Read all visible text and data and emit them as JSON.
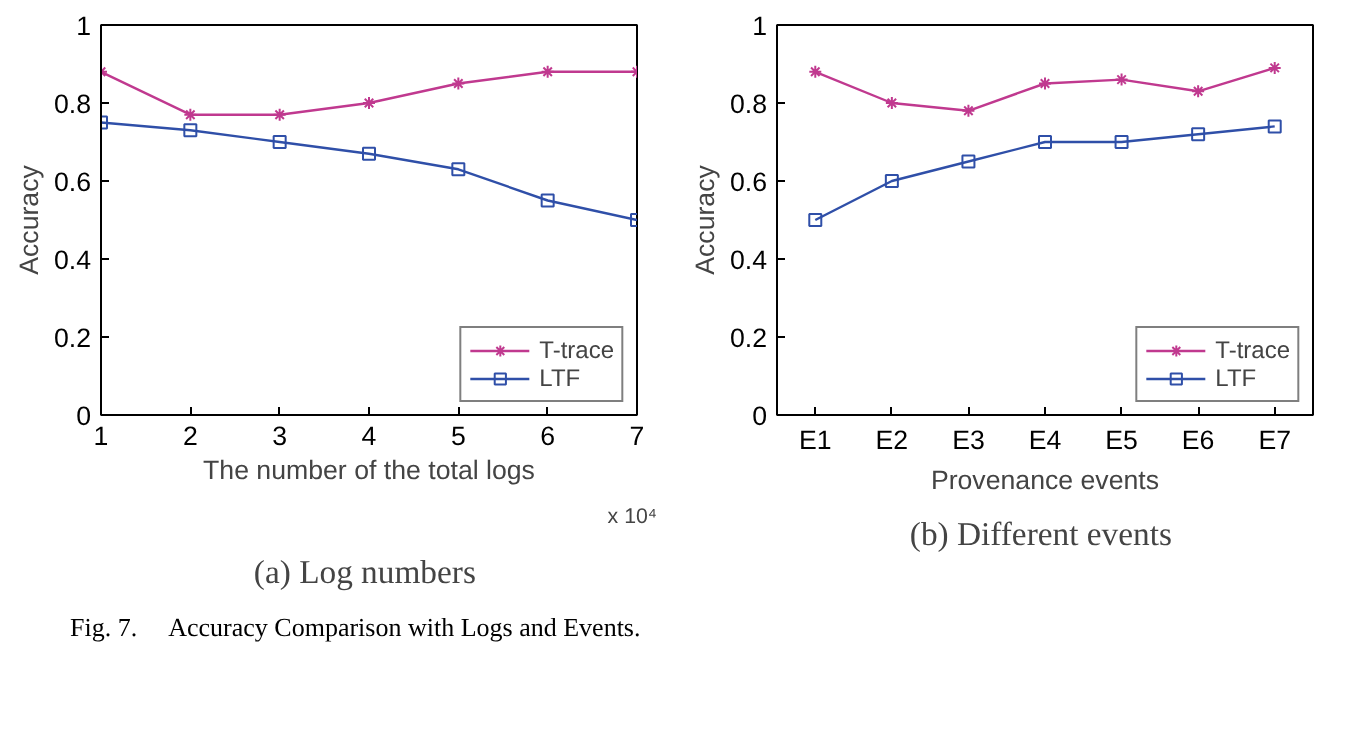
{
  "chart_data": [
    {
      "type": "line",
      "title": "(a)  Log numbers",
      "xlabel": "The number of the total logs",
      "ylabel": "Accuracy",
      "x": [
        1,
        2,
        3,
        4,
        5,
        6,
        7
      ],
      "xlim": [
        1,
        7
      ],
      "xticks": [
        1,
        2,
        3,
        4,
        5,
        6,
        7
      ],
      "ylim": [
        0,
        1
      ],
      "yticks": [
        0,
        0.2,
        0.4,
        0.6,
        0.8,
        1
      ],
      "series": [
        {
          "name": "T-trace",
          "color": "#c0398f",
          "marker": "cross",
          "values": [
            0.88,
            0.77,
            0.77,
            0.8,
            0.85,
            0.88,
            0.88
          ]
        },
        {
          "name": "LTF",
          "color": "#2f4fa8",
          "marker": "square",
          "values": [
            0.75,
            0.73,
            0.7,
            0.67,
            0.63,
            0.55,
            0.5
          ]
        }
      ],
      "legend": "bottom right",
      "grid": false,
      "annotations": [
        "x 10⁴"
      ]
    },
    {
      "type": "line",
      "title": "(b)  Different events",
      "xlabel": "Provenance events",
      "ylabel": "Accuracy",
      "categories": [
        "E1",
        "E2",
        "E3",
        "E4",
        "E5",
        "E6",
        "E7"
      ],
      "ylim": [
        0,
        1
      ],
      "yticks": [
        0,
        0.2,
        0.4,
        0.6,
        0.8,
        1
      ],
      "series": [
        {
          "name": "T-trace",
          "color": "#c0398f",
          "marker": "cross",
          "values": [
            0.88,
            0.8,
            0.78,
            0.85,
            0.86,
            0.83,
            0.89
          ]
        },
        {
          "name": "LTF",
          "color": "#2f4fa8",
          "marker": "square",
          "values": [
            0.5,
            0.6,
            0.65,
            0.7,
            0.7,
            0.72,
            0.74
          ]
        }
      ],
      "legend": "bottom right",
      "grid": false,
      "annotations": [
        "Fig. 7.     Accuracy Comparison with Logs and Events."
      ]
    }
  ]
}
